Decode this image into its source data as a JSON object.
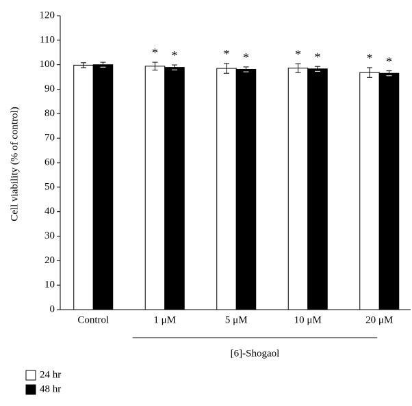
{
  "chart_data": {
    "type": "bar",
    "y_label": "Cell viability (% of control)",
    "categories": [
      "Control",
      "1 μM",
      "5 μM",
      "10 μM",
      "20 μM"
    ],
    "group_label": "[6]-Shogaol",
    "series": [
      {
        "name": "24 hr",
        "color": "#ffffff",
        "values": [
          99.8,
          99.4,
          98.5,
          98.6,
          96.8
        ],
        "errors": [
          1.0,
          1.6,
          2.0,
          1.8,
          2.0
        ],
        "annotations": [
          null,
          "*",
          "*",
          "*",
          "*"
        ]
      },
      {
        "name": "48 hr",
        "color": "#000000",
        "values": [
          100,
          98.9,
          98.1,
          98.3,
          96.5
        ],
        "errors": [
          1.0,
          1.0,
          1.0,
          1.0,
          1.0
        ],
        "annotations": [
          null,
          "*",
          "*",
          "*",
          "*"
        ]
      }
    ],
    "ylim": [
      0,
      120
    ],
    "yticks": [
      0,
      10,
      20,
      30,
      40,
      50,
      60,
      70,
      80,
      90,
      100,
      110,
      120
    ],
    "legend": "bottom-left"
  }
}
